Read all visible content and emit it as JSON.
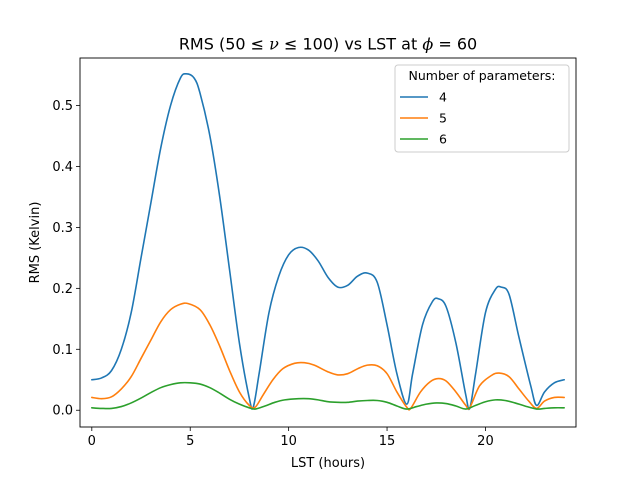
{
  "chart_data": {
    "type": "line",
    "title_parts": {
      "prefix": "RMS (50 ≤ ",
      "nu": "ν",
      "middle": " ≤ 100) vs LST at ",
      "phi": "ϕ",
      "suffix": " = 60"
    },
    "xlabel": "LST (hours)",
    "ylabel": "RMS (Kelvin)",
    "xlim": [
      -0.6,
      24.6
    ],
    "ylim": [
      -0.0275,
      0.578
    ],
    "xticks": [
      0,
      5,
      10,
      15,
      20
    ],
    "yticks": [
      0.0,
      0.1,
      0.2,
      0.3,
      0.4,
      0.5
    ],
    "ytick_labels": [
      "0.0",
      "0.1",
      "0.2",
      "0.3",
      "0.4",
      "0.5"
    ],
    "grid": false,
    "legend": {
      "title": "Number of parameters:",
      "placement": "top-right"
    },
    "series": [
      {
        "name": "4",
        "color": "#1f77b4",
        "points": [
          [
            0,
            0.05
          ],
          [
            0.5,
            0.053
          ],
          [
            1,
            0.065
          ],
          [
            1.5,
            0.1
          ],
          [
            2,
            0.16
          ],
          [
            2.5,
            0.25
          ],
          [
            3,
            0.34
          ],
          [
            3.5,
            0.43
          ],
          [
            4,
            0.5
          ],
          [
            4.5,
            0.545
          ],
          [
            4.8,
            0.552
          ],
          [
            5.2,
            0.545
          ],
          [
            5.5,
            0.52
          ],
          [
            6,
            0.45
          ],
          [
            6.5,
            0.35
          ],
          [
            7,
            0.23
          ],
          [
            7.5,
            0.11
          ],
          [
            8,
            0.02
          ],
          [
            8.2,
            0.005
          ],
          [
            8.5,
            0.06
          ],
          [
            9,
            0.16
          ],
          [
            9.5,
            0.22
          ],
          [
            10,
            0.255
          ],
          [
            10.5,
            0.267
          ],
          [
            11,
            0.263
          ],
          [
            11.5,
            0.245
          ],
          [
            12,
            0.218
          ],
          [
            12.5,
            0.202
          ],
          [
            13,
            0.205
          ],
          [
            13.5,
            0.22
          ],
          [
            14,
            0.225
          ],
          [
            14.5,
            0.21
          ],
          [
            15,
            0.14
          ],
          [
            15.5,
            0.06
          ],
          [
            16,
            0.01
          ],
          [
            16.3,
            0.06
          ],
          [
            16.8,
            0.14
          ],
          [
            17.3,
            0.178
          ],
          [
            17.6,
            0.183
          ],
          [
            18,
            0.17
          ],
          [
            18.5,
            0.11
          ],
          [
            19,
            0.025
          ],
          [
            19.2,
            0.003
          ],
          [
            19.5,
            0.06
          ],
          [
            20,
            0.16
          ],
          [
            20.5,
            0.198
          ],
          [
            20.8,
            0.202
          ],
          [
            21.2,
            0.19
          ],
          [
            21.7,
            0.12
          ],
          [
            22.3,
            0.04
          ],
          [
            22.6,
            0.008
          ],
          [
            23,
            0.03
          ],
          [
            23.5,
            0.045
          ],
          [
            24,
            0.05
          ]
        ]
      },
      {
        "name": "5",
        "color": "#ff7f0e",
        "points": [
          [
            0,
            0.021
          ],
          [
            0.5,
            0.019
          ],
          [
            1,
            0.022
          ],
          [
            1.5,
            0.035
          ],
          [
            2,
            0.055
          ],
          [
            2.5,
            0.085
          ],
          [
            3,
            0.115
          ],
          [
            3.5,
            0.145
          ],
          [
            4,
            0.165
          ],
          [
            4.5,
            0.174
          ],
          [
            4.9,
            0.175
          ],
          [
            5.5,
            0.165
          ],
          [
            6,
            0.14
          ],
          [
            6.5,
            0.105
          ],
          [
            7,
            0.065
          ],
          [
            7.5,
            0.03
          ],
          [
            8,
            0.008
          ],
          [
            8.3,
            0.005
          ],
          [
            8.7,
            0.025
          ],
          [
            9.2,
            0.05
          ],
          [
            9.7,
            0.068
          ],
          [
            10.3,
            0.077
          ],
          [
            10.8,
            0.078
          ],
          [
            11.3,
            0.074
          ],
          [
            12,
            0.063
          ],
          [
            12.5,
            0.058
          ],
          [
            13,
            0.06
          ],
          [
            13.5,
            0.068
          ],
          [
            14,
            0.074
          ],
          [
            14.5,
            0.073
          ],
          [
            15,
            0.06
          ],
          [
            15.5,
            0.03
          ],
          [
            16,
            0.005
          ],
          [
            16.2,
            0.003
          ],
          [
            16.7,
            0.03
          ],
          [
            17.2,
            0.047
          ],
          [
            17.6,
            0.052
          ],
          [
            18,
            0.048
          ],
          [
            18.5,
            0.03
          ],
          [
            19,
            0.008
          ],
          [
            19.2,
            0.004
          ],
          [
            19.7,
            0.04
          ],
          [
            20.3,
            0.057
          ],
          [
            20.7,
            0.061
          ],
          [
            21.2,
            0.055
          ],
          [
            21.7,
            0.035
          ],
          [
            22.2,
            0.015
          ],
          [
            22.6,
            0.003
          ],
          [
            23,
            0.015
          ],
          [
            23.5,
            0.021
          ],
          [
            24,
            0.021
          ]
        ]
      },
      {
        "name": "6",
        "color": "#2ca02c",
        "points": [
          [
            0,
            0.004
          ],
          [
            0.5,
            0.003
          ],
          [
            1,
            0.003
          ],
          [
            1.5,
            0.006
          ],
          [
            2,
            0.012
          ],
          [
            2.5,
            0.02
          ],
          [
            3,
            0.029
          ],
          [
            3.5,
            0.037
          ],
          [
            4,
            0.042
          ],
          [
            4.5,
            0.045
          ],
          [
            5,
            0.045
          ],
          [
            5.5,
            0.043
          ],
          [
            6,
            0.037
          ],
          [
            6.5,
            0.028
          ],
          [
            7,
            0.018
          ],
          [
            7.5,
            0.01
          ],
          [
            8,
            0.004
          ],
          [
            8.3,
            0.002
          ],
          [
            8.8,
            0.007
          ],
          [
            9.3,
            0.013
          ],
          [
            9.8,
            0.017
          ],
          [
            10.5,
            0.019
          ],
          [
            11,
            0.019
          ],
          [
            11.5,
            0.017
          ],
          [
            12,
            0.014
          ],
          [
            12.5,
            0.013
          ],
          [
            13,
            0.013
          ],
          [
            13.5,
            0.015
          ],
          [
            14,
            0.016
          ],
          [
            14.5,
            0.016
          ],
          [
            15,
            0.013
          ],
          [
            15.5,
            0.007
          ],
          [
            16,
            0.002
          ],
          [
            16.5,
            0.006
          ],
          [
            17,
            0.01
          ],
          [
            17.5,
            0.012
          ],
          [
            18,
            0.011
          ],
          [
            18.5,
            0.007
          ],
          [
            19,
            0.002
          ],
          [
            19.5,
            0.008
          ],
          [
            20,
            0.014
          ],
          [
            20.5,
            0.017
          ],
          [
            21,
            0.016
          ],
          [
            21.5,
            0.012
          ],
          [
            22,
            0.007
          ],
          [
            22.6,
            0.002
          ],
          [
            23,
            0.003
          ],
          [
            23.5,
            0.004
          ],
          [
            24,
            0.004
          ]
        ]
      }
    ]
  }
}
